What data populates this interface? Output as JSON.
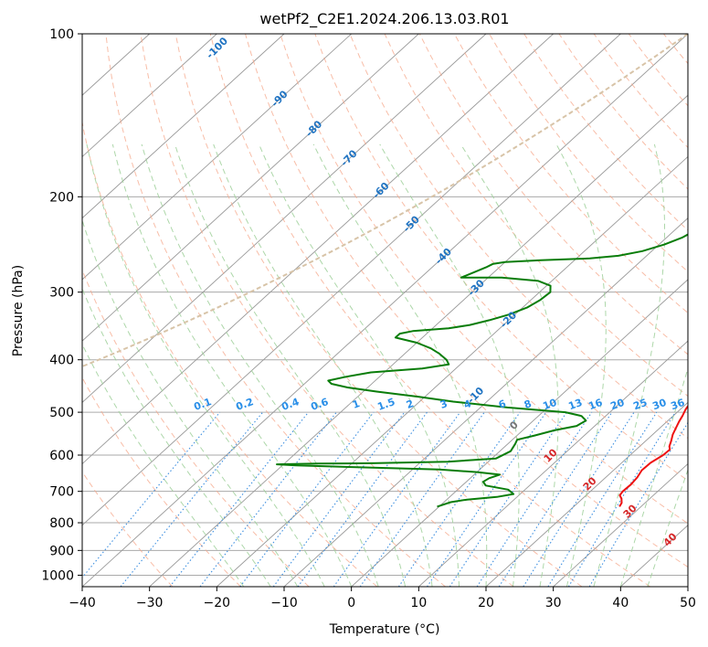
{
  "chart_data": {
    "type": "line",
    "title": "wetPf2_C2E1.2024.206.13.03.R01",
    "xlabel": "Temperature (°C)",
    "ylabel": "Pressure (hPa)",
    "xlim": [
      -40,
      50
    ],
    "ylim": [
      1050,
      100
    ],
    "x_ticks": [
      -40,
      -30,
      -20,
      -10,
      0,
      10,
      20,
      30,
      40,
      50
    ],
    "y_ticks": [
      100,
      200,
      300,
      400,
      500,
      600,
      700,
      800,
      900,
      1000
    ],
    "grid": true,
    "skew": 1.0,
    "colors": {
      "temperature": "#ee1111",
      "dewpoint": "#0a7d0a",
      "isotherm": "#999999",
      "isobar": "#aaaaaa",
      "dry_adiabat": "#f5a78a",
      "moist_adiabat": "#9fd09a",
      "mixing_ratio": "#3d8fe0",
      "label_blue": "#1f73c2",
      "label_red": "#d62728",
      "label_gray": "#777777",
      "label_mixing": "#2a8fe8",
      "lcl_curve": "#d8c4a8"
    },
    "series": [
      {
        "name": "Temperature",
        "points": [
          [
            26.8,
            747
          ],
          [
            26.5,
            735
          ],
          [
            25.8,
            722
          ],
          [
            25.0,
            712
          ],
          [
            24.8,
            700
          ],
          [
            24.9,
            680
          ],
          [
            24.7,
            660
          ],
          [
            24.2,
            640
          ],
          [
            24.3,
            620
          ],
          [
            24.9,
            600
          ],
          [
            25.0,
            586
          ],
          [
            24.4,
            578
          ],
          [
            23.8,
            565
          ],
          [
            23.0,
            550
          ],
          [
            22.4,
            535
          ],
          [
            21.8,
            520
          ],
          [
            21.4,
            508
          ],
          [
            20.8,
            494
          ],
          [
            20.4,
            480
          ],
          [
            20.0,
            466
          ],
          [
            20.1,
            452
          ],
          [
            20.4,
            438
          ],
          [
            19.8,
            428
          ],
          [
            19.2,
            420
          ],
          [
            18.7,
            410
          ],
          [
            18.2,
            400
          ],
          [
            18.1,
            390
          ],
          [
            17.9,
            380
          ],
          [
            17.6,
            370
          ],
          [
            17.0,
            360
          ],
          [
            15.8,
            350
          ],
          [
            14.3,
            340
          ],
          [
            12.9,
            330
          ],
          [
            12.3,
            320
          ],
          [
            12.1,
            310
          ],
          [
            12.2,
            300
          ],
          [
            12.3,
            290
          ],
          [
            12.0,
            280
          ],
          [
            11.2,
            270
          ],
          [
            9.9,
            260
          ],
          [
            8.8,
            250
          ],
          [
            7.8,
            240
          ],
          [
            6.8,
            230
          ],
          [
            5.8,
            220
          ],
          [
            4.6,
            210
          ],
          [
            3.4,
            200
          ],
          [
            2.2,
            190
          ],
          [
            1.2,
            180
          ],
          [
            0.5,
            170
          ],
          [
            0.2,
            160
          ],
          [
            0.0,
            150
          ],
          [
            -0.3,
            140
          ],
          [
            -0.5,
            130
          ],
          [
            -0.8,
            120
          ],
          [
            -1.0,
            115
          ],
          [
            -1.0,
            110
          ],
          [
            -0.4,
            106
          ],
          [
            1.5,
            102
          ],
          [
            3.7,
            100
          ]
        ]
      },
      {
        "name": "Dewpoint",
        "points": [
          [
            -0.3,
            747
          ],
          [
            1.0,
            733
          ],
          [
            3.0,
            725
          ],
          [
            7.0,
            717
          ],
          [
            9.0,
            708
          ],
          [
            7.5,
            695
          ],
          [
            3.5,
            683
          ],
          [
            2.5,
            672
          ],
          [
            2.8,
            662
          ],
          [
            3.8,
            652
          ],
          [
            0.0,
            645
          ],
          [
            -6.0,
            638
          ],
          [
            -18.0,
            632
          ],
          [
            -28.0,
            627
          ],
          [
            -31.0,
            624
          ],
          [
            -25.0,
            622
          ],
          [
            -17.0,
            621
          ],
          [
            -6.0,
            617
          ],
          [
            0.6,
            609
          ],
          [
            1.6,
            590
          ],
          [
            1.1,
            572
          ],
          [
            0.7,
            562
          ],
          [
            2.6,
            552
          ],
          [
            4.7,
            540
          ],
          [
            7.3,
            530
          ],
          [
            7.8,
            518
          ],
          [
            6.4,
            508
          ],
          [
            3.4,
            500
          ],
          [
            -6.0,
            490
          ],
          [
            -15.0,
            478
          ],
          [
            -21.0,
            468
          ],
          [
            -28.0,
            458
          ],
          [
            -33.0,
            450
          ],
          [
            -36.0,
            443
          ],
          [
            -37.0,
            437
          ],
          [
            -35.0,
            430
          ],
          [
            -32.0,
            422
          ],
          [
            -25.0,
            415
          ],
          [
            -21.7,
            408
          ],
          [
            -22.8,
            400
          ],
          [
            -24.8,
            390
          ],
          [
            -27.0,
            381
          ],
          [
            -30.0,
            372
          ],
          [
            -34.0,
            364
          ],
          [
            -34.0,
            358
          ],
          [
            -32.5,
            354
          ],
          [
            -27.6,
            350
          ],
          [
            -25.0,
            345
          ],
          [
            -22.9,
            338
          ],
          [
            -20.9,
            330
          ],
          [
            -19.3,
            320
          ],
          [
            -18.6,
            310
          ],
          [
            -18.4,
            300
          ],
          [
            -19.4,
            292
          ],
          [
            -22.0,
            286
          ],
          [
            -28.0,
            282
          ],
          [
            -34.0,
            282
          ],
          [
            -33.0,
            276
          ],
          [
            -32.0,
            270
          ],
          [
            -31.5,
            266
          ],
          [
            -30.0,
            264
          ],
          [
            -25.0,
            262
          ],
          [
            -18.0,
            260
          ],
          [
            -14.2,
            257
          ],
          [
            -11.4,
            252
          ],
          [
            -9.2,
            245
          ],
          [
            -7.7,
            238
          ],
          [
            -6.8,
            230
          ],
          [
            -5.8,
            222
          ],
          [
            -5.0,
            215
          ],
          [
            -4.6,
            208
          ],
          [
            -3.8,
            201
          ],
          [
            -2.8,
            194
          ],
          [
            -1.9,
            187
          ],
          [
            -1.3,
            180
          ],
          [
            -1.3,
            173
          ],
          [
            -1.6,
            166
          ],
          [
            -2.3,
            160
          ],
          [
            -3.4,
            155
          ],
          [
            -4.3,
            150
          ],
          [
            -5.3,
            146
          ],
          [
            -6.2,
            142
          ],
          [
            -6.8,
            138
          ],
          [
            -7.2,
            135
          ],
          [
            -7.0,
            132
          ],
          [
            -5.8,
            129
          ],
          [
            -4.8,
            126
          ],
          [
            -4.4,
            123
          ],
          [
            -4.6,
            120
          ],
          [
            -5.1,
            117
          ],
          [
            -5.7,
            114
          ],
          [
            -6.4,
            111
          ],
          [
            -6.8,
            108
          ],
          [
            -7.0,
            104
          ],
          [
            -6.8,
            100
          ]
        ]
      }
    ],
    "iso_labels": {
      "isotherms": [
        "-100",
        "-90",
        "-80",
        "-70",
        "-60",
        "-50",
        "-40",
        "-30",
        "-20",
        "-10",
        "0",
        "10",
        "20",
        "30",
        "40"
      ],
      "mixing_ratio": [
        "0.1",
        "0.2",
        "0.4",
        "0.6",
        "1",
        "1.5",
        "2",
        "3",
        "4",
        "6",
        "8",
        "10",
        "13",
        "16",
        "20",
        "25",
        "30",
        "36"
      ]
    },
    "mixing_ratio_values": [
      0.1,
      0.2,
      0.4,
      0.6,
      1,
      1.5,
      2,
      3,
      4,
      6,
      8,
      10,
      13,
      16,
      20,
      25,
      30,
      36
    ]
  }
}
